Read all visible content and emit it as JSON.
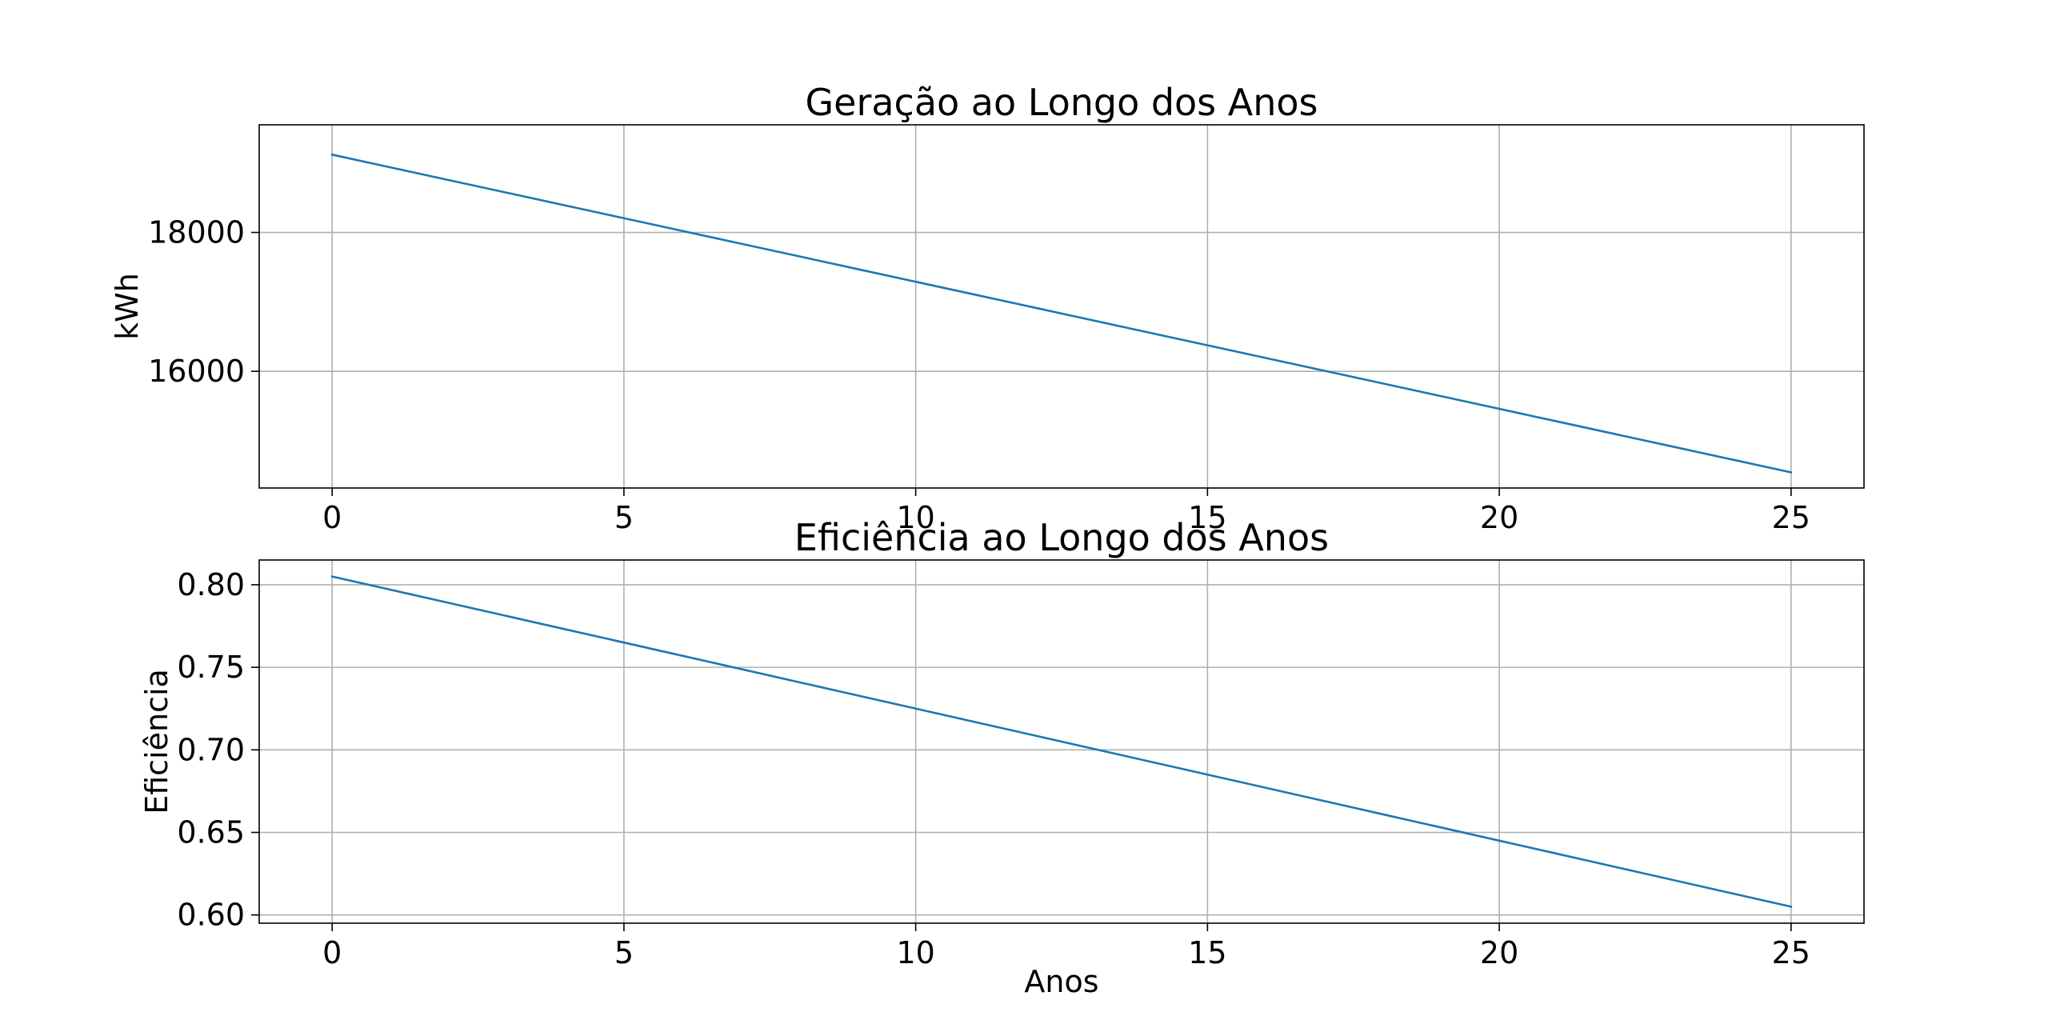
{
  "chart_data": [
    {
      "type": "line",
      "title": "Geração ao Longo dos Anos",
      "xlabel": "",
      "ylabel": "kWh",
      "x": [
        0,
        1,
        2,
        3,
        4,
        5,
        6,
        7,
        8,
        9,
        10,
        11,
        12,
        13,
        14,
        15,
        16,
        17,
        18,
        19,
        20,
        21,
        22,
        23,
        24,
        25
      ],
      "series": [
        {
          "values": [
            19120,
            18937,
            18754,
            18571,
            18388,
            18205,
            18022,
            17839,
            17656,
            17473,
            17290,
            17107,
            16924,
            16741,
            16558,
            16375,
            16192,
            16009,
            15826,
            15643,
            15460,
            15277,
            15094,
            14911,
            14728,
            14545
          ],
          "color": "#1f77b4"
        }
      ],
      "xlim": [
        -1.25,
        26.25
      ],
      "ylim": [
        14320,
        19550
      ],
      "xticks": [
        0,
        5,
        10,
        15,
        20,
        25
      ],
      "xtick_labels": [
        "0",
        "5",
        "10",
        "15",
        "20",
        "25"
      ],
      "yticks": [
        16000,
        18000
      ],
      "ytick_labels": [
        "16000",
        "18000"
      ],
      "grid": true
    },
    {
      "type": "line",
      "title": "Eficiência ao Longo dos Anos",
      "xlabel": "Anos",
      "ylabel": "Eficiência",
      "x": [
        0,
        1,
        2,
        3,
        4,
        5,
        6,
        7,
        8,
        9,
        10,
        11,
        12,
        13,
        14,
        15,
        16,
        17,
        18,
        19,
        20,
        21,
        22,
        23,
        24,
        25
      ],
      "series": [
        {
          "values": [
            0.805,
            0.797,
            0.789,
            0.781,
            0.773,
            0.765,
            0.757,
            0.749,
            0.741,
            0.733,
            0.725,
            0.717,
            0.709,
            0.701,
            0.693,
            0.685,
            0.677,
            0.669,
            0.661,
            0.653,
            0.645,
            0.637,
            0.629,
            0.621,
            0.613,
            0.605
          ],
          "color": "#1f77b4"
        }
      ],
      "xlim": [
        -1.25,
        26.25
      ],
      "ylim": [
        0.595,
        0.815
      ],
      "xticks": [
        0,
        5,
        10,
        15,
        20,
        25
      ],
      "xtick_labels": [
        "0",
        "5",
        "10",
        "15",
        "20",
        "25"
      ],
      "yticks": [
        0.6,
        0.65,
        0.7,
        0.75,
        0.8
      ],
      "ytick_labels": [
        "0.60",
        "0.65",
        "0.70",
        "0.75",
        "0.80"
      ],
      "grid": true
    }
  ]
}
